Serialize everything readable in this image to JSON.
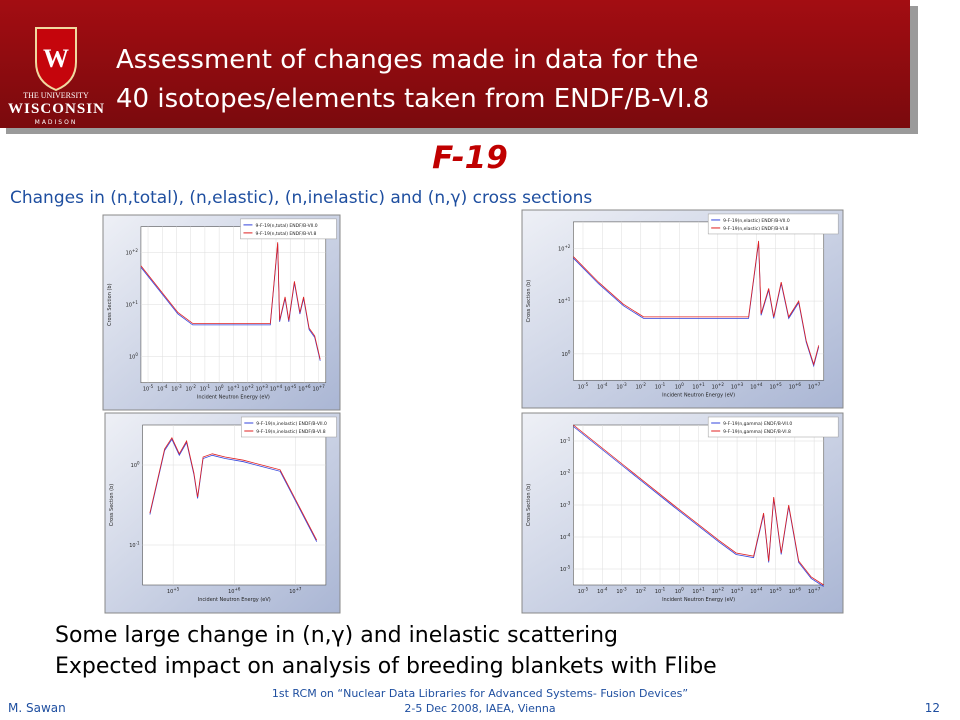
{
  "header": {
    "logo_letter": "W",
    "logo_lines": [
      "THE UNIVERSITY",
      "WISCONSIN",
      "MADISON"
    ],
    "title": [
      "Assessment of changes made in data for the",
      "40 isotopes/elements taken from ENDF/B-VI.8"
    ]
  },
  "subtitle": "F-19",
  "caption": "Changes in (n,total), (n,elastic), (n,inelastic) and (n,γ) cross sections",
  "plots": [
    {
      "legend": [
        "9-F-19(n,total) ENDF/B-VII.0",
        "9-F-19(n,total) ENDF/B-VI.8"
      ],
      "x_label": "Incident Neutron Energy (eV)",
      "y_label": "Cross Section (b)",
      "tick_base": "10",
      "xticks": [
        "-5",
        "-4",
        "-3",
        "-2",
        "-1",
        "0",
        "+1",
        "+2",
        "+3",
        "+4",
        "+5",
        "+6",
        "+7"
      ],
      "yticks": [
        "0",
        "+1",
        "+2"
      ]
    },
    {
      "legend": [
        "9-F-19(n,elastic) ENDF/B-VII.0",
        "9-F-19(n,elastic) ENDF/B-VI.8"
      ],
      "x_label": "Incident Neutron Energy (eV)",
      "y_label": "Cross Section (b)",
      "tick_base": "10",
      "xticks": [
        "-5",
        "-4",
        "-3",
        "-2",
        "-1",
        "0",
        "+1",
        "+2",
        "+3",
        "+4",
        "+5",
        "+6",
        "+7"
      ],
      "yticks": [
        "0",
        "+1",
        "+2"
      ]
    },
    {
      "legend": [
        "9-F-19(n,inelastic) ENDF/B-VII.0",
        "9-F-19(n,inelastic) ENDF/B-VI.8"
      ],
      "x_label": "Incident Neutron Energy (eV)",
      "y_label": "Cross Section (b)",
      "tick_base": "10",
      "xticks": [
        "+5",
        "+6",
        "+7"
      ],
      "yticks": [
        "-1",
        "0"
      ]
    },
    {
      "legend": [
        "9-F-19(n,gamma) ENDF/B-VII.0",
        "9-F-19(n,gamma) ENDF/B-VI.8"
      ],
      "x_label": "Incident Neutron Energy (eV)",
      "y_label": "Cross Section (b)",
      "tick_base": "10",
      "xticks": [
        "-5",
        "-4",
        "-3",
        "-2",
        "-1",
        "0",
        "+1",
        "+2",
        "+3",
        "+4",
        "+5",
        "+6",
        "+7"
      ],
      "yticks": [
        "-5",
        "-4",
        "-3",
        "-2",
        "-1"
      ]
    }
  ],
  "bullets": [
    "Some large change in (n,γ) and inelastic scattering",
    "Expected impact on analysis of breeding blankets with Flibe"
  ],
  "footer": {
    "author": "M. Sawan",
    "event": [
      "1st RCM on “Nuclear Data Libraries for Advanced Systems- Fusion Devices”",
      "2-5 Dec 2008, IAEA, Vienna"
    ],
    "page": "12"
  }
}
